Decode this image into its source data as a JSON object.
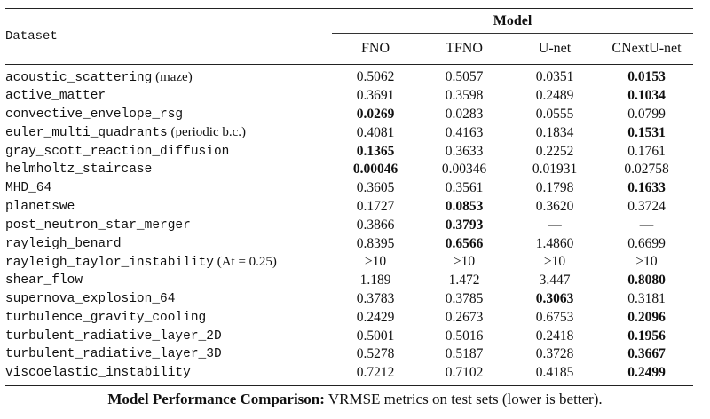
{
  "table": {
    "dataset_header": "Dataset",
    "group_header": "Model",
    "columns": [
      "FNO",
      "TFNO",
      "U-net",
      "CNextU-net"
    ],
    "rows": [
      {
        "name": "acoustic_scattering",
        "note": " (maze)",
        "values": [
          "0.5062",
          "0.5057",
          "0.0351",
          "0.0153"
        ],
        "best": [
          false,
          false,
          false,
          true
        ]
      },
      {
        "name": "active_matter",
        "note": "",
        "values": [
          "0.3691",
          "0.3598",
          "0.2489",
          "0.1034"
        ],
        "best": [
          false,
          false,
          false,
          true
        ]
      },
      {
        "name": "convective_envelope_rsg",
        "note": "",
        "values": [
          "0.0269",
          "0.0283",
          "0.0555",
          "0.0799"
        ],
        "best": [
          true,
          false,
          false,
          false
        ]
      },
      {
        "name": "euler_multi_quadrants",
        "note": " (periodic b.c.)",
        "values": [
          "0.4081",
          "0.4163",
          "0.1834",
          "0.1531"
        ],
        "best": [
          false,
          false,
          false,
          true
        ]
      },
      {
        "name": "gray_scott_reaction_diffusion",
        "note": "",
        "values": [
          "0.1365",
          "0.3633",
          "0.2252",
          "0.1761"
        ],
        "best": [
          true,
          false,
          false,
          false
        ]
      },
      {
        "name": "helmholtz_staircase",
        "note": "",
        "values": [
          "0.00046",
          "0.00346",
          "0.01931",
          "0.02758"
        ],
        "best": [
          true,
          false,
          false,
          false
        ]
      },
      {
        "name": "MHD_64",
        "note": "",
        "values": [
          "0.3605",
          "0.3561",
          "0.1798",
          "0.1633"
        ],
        "best": [
          false,
          false,
          false,
          true
        ]
      },
      {
        "name": "planetswe",
        "note": "",
        "values": [
          "0.1727",
          "0.0853",
          "0.3620",
          "0.3724"
        ],
        "best": [
          false,
          true,
          false,
          false
        ]
      },
      {
        "name": "post_neutron_star_merger",
        "note": "",
        "values": [
          "0.3866",
          "0.3793",
          "—",
          "—"
        ],
        "best": [
          false,
          true,
          false,
          false
        ]
      },
      {
        "name": "rayleigh_benard",
        "note": "",
        "values": [
          "0.8395",
          "0.6566",
          "1.4860",
          "0.6699"
        ],
        "best": [
          false,
          true,
          false,
          false
        ]
      },
      {
        "name": "rayleigh_taylor_instability",
        "note": " (At = 0.25)",
        "values": [
          ">10",
          ">10",
          ">10",
          ">10"
        ],
        "best": [
          false,
          false,
          false,
          false
        ]
      },
      {
        "name": "shear_flow",
        "note": "",
        "values": [
          "1.189",
          "1.472",
          "3.447",
          "0.8080"
        ],
        "best": [
          false,
          false,
          false,
          true
        ]
      },
      {
        "name": "supernova_explosion_64",
        "note": "",
        "values": [
          "0.3783",
          "0.3785",
          "0.3063",
          "0.3181"
        ],
        "best": [
          false,
          false,
          true,
          false
        ]
      },
      {
        "name": "turbulence_gravity_cooling",
        "note": "",
        "values": [
          "0.2429",
          "0.2673",
          "0.6753",
          "0.2096"
        ],
        "best": [
          false,
          false,
          false,
          true
        ]
      },
      {
        "name": "turbulent_radiative_layer_2D",
        "note": "",
        "values": [
          "0.5001",
          "0.5016",
          "0.2418",
          "0.1956"
        ],
        "best": [
          false,
          false,
          false,
          true
        ]
      },
      {
        "name": "turbulent_radiative_layer_3D",
        "note": "",
        "values": [
          "0.5278",
          "0.5187",
          "0.3728",
          "0.3667"
        ],
        "best": [
          false,
          false,
          false,
          true
        ]
      },
      {
        "name": "viscoelastic_instability",
        "note": "",
        "values": [
          "0.7212",
          "0.7102",
          "0.4185",
          "0.2499"
        ],
        "best": [
          false,
          false,
          false,
          true
        ]
      }
    ]
  },
  "caption": {
    "lead": "Model Performance Comparison:",
    "text": " VRMSE metrics on test sets (lower is better)."
  }
}
